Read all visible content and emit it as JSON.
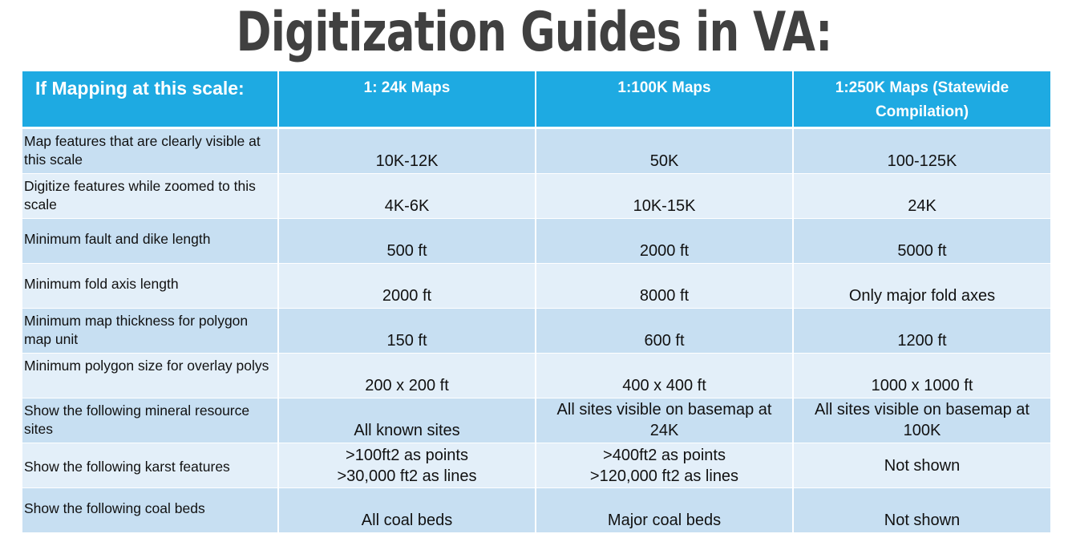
{
  "title": "Digitization Guides in VA:",
  "table": {
    "headers": [
      "If Mapping at this scale:",
      "1: 24k Maps",
      "1:100K Maps",
      "1:250K Maps (Statewide Compilation)"
    ],
    "rows": [
      {
        "label": "Map features that are clearly visible at this scale",
        "values": [
          "10K-12K",
          "50K",
          "100-125K"
        ]
      },
      {
        "label": "Digitize features while zoomed to this scale",
        "values": [
          "4K-6K",
          "10K-15K",
          "24K"
        ]
      },
      {
        "label": "Minimum fault and dike length",
        "values": [
          "500 ft",
          "2000 ft",
          "5000 ft"
        ]
      },
      {
        "label": "Minimum fold axis length",
        "values": [
          "2000 ft",
          "8000 ft",
          "Only major fold axes"
        ]
      },
      {
        "label": "Minimum map thickness for polygon map unit",
        "values": [
          "150 ft",
          "600 ft",
          "1200 ft"
        ]
      },
      {
        "label": "Minimum polygon size for overlay polys",
        "values": [
          "200 x 200 ft",
          "400 x 400 ft",
          "1000 x 1000 ft"
        ]
      },
      {
        "label": "Show the following mineral resource sites",
        "values": [
          "All known sites",
          "All sites visible on basemap at 24K",
          "All sites visible on basemap at 100K"
        ]
      },
      {
        "label": "Show the following karst features",
        "values": [
          ">100ft2 as points\n>30,000 ft2 as lines",
          ">400ft2 as points\n>120,000 ft2 as lines",
          "Not shown"
        ]
      },
      {
        "label": "Show the following coal beds",
        "values": [
          "All coal beds",
          "Major coal beds",
          "Not shown"
        ]
      }
    ]
  },
  "colors": {
    "header_bg": "#1eaae2",
    "row_dark": "#c7dff2",
    "row_light": "#e3eff9",
    "title": "#404040"
  }
}
